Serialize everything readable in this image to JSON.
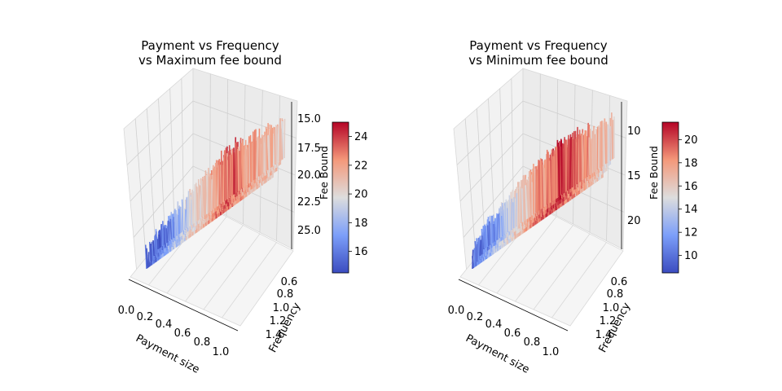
{
  "chart_data": [
    {
      "type": "surface3d",
      "title": [
        "Payment vs Frequency",
        "vs Maximum fee bound"
      ],
      "xlabel": "Payment size",
      "ylabel": "Frequency",
      "zlabel": "",
      "xlim": [
        0.0,
        1.0
      ],
      "ylim": [
        0.5,
        1.5
      ],
      "zlim": [
        14.0,
        25.5
      ],
      "xticks": [
        "0.0",
        "0.2",
        "0.4",
        "0.6",
        "0.8",
        "1.0"
      ],
      "yticks": [
        "0.6",
        "0.8",
        "1.0",
        "1.2",
        "1.4"
      ],
      "zticks": [
        "15.0",
        "17.5",
        "20.0",
        "22.5",
        "25.0"
      ],
      "colormap": "coolwarm",
      "colorbar": {
        "label": "Fee Bound",
        "range": [
          14.5,
          25.0
        ],
        "ticks": [
          "16",
          "18",
          "20",
          "22",
          "24"
        ]
      },
      "surface_profile": {
        "x": [
          0.0,
          0.2,
          0.4,
          0.6,
          0.8,
          1.0
        ],
        "fee_bound": [
          15.0,
          18.5,
          21.0,
          23.5,
          21.5,
          20.5
        ]
      }
    },
    {
      "type": "surface3d",
      "title": [
        "Payment vs Frequency",
        "vs Minimum fee bound"
      ],
      "xlabel": "Payment size",
      "ylabel": "Frequency",
      "zlabel": "Fee Bound",
      "xlim": [
        0.0,
        1.0
      ],
      "ylim": [
        0.5,
        1.5
      ],
      "zlim": [
        6.5,
        22.0
      ],
      "xticks": [
        "0.0",
        "0.2",
        "0.4",
        "0.6",
        "0.8",
        "1.0"
      ],
      "yticks": [
        "0.6",
        "0.8",
        "1.0",
        "1.2",
        "1.4"
      ],
      "zticks": [
        "10",
        "15",
        "20"
      ],
      "colormap": "coolwarm",
      "colorbar": {
        "label": "",
        "range": [
          8.5,
          21.5
        ],
        "ticks": [
          "10",
          "12",
          "14",
          "16",
          "18",
          "20"
        ]
      },
      "surface_profile": {
        "x": [
          0.0,
          0.2,
          0.4,
          0.6,
          0.8,
          1.0
        ],
        "fee_bound": [
          10.0,
          14.0,
          17.5,
          20.5,
          18.0,
          15.5
        ]
      }
    }
  ]
}
